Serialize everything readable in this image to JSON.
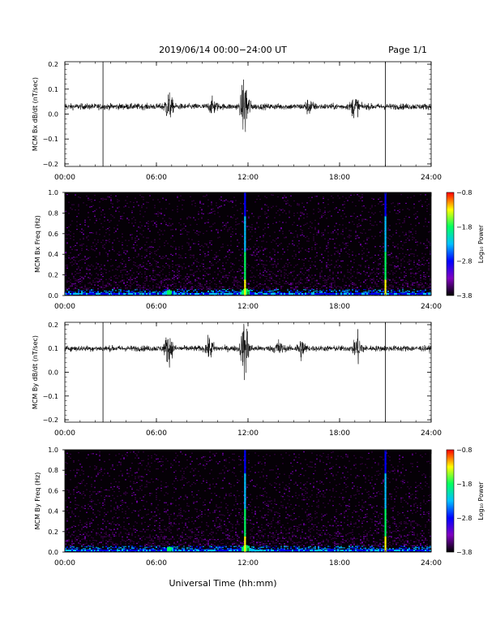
{
  "header": {
    "title": "2019/06/14  00:00−24:00 UT",
    "page": "Page 1/1"
  },
  "footer": {
    "xlabel": "Universal Time (hh:mm)"
  },
  "colors": {
    "background": "#ffffff",
    "trace": "#000000",
    "spectrogram_bg": "#050006"
  },
  "chart_data": [
    {
      "type": "line",
      "ylabel": "MCM Bx dB/dt (nT/sec)",
      "x_ticks": [
        "00:00",
        "06:00",
        "12:00",
        "18:00",
        "24:00"
      ],
      "x_range_hours": [
        0,
        24
      ],
      "y_ticks": [
        "0.2",
        "0.1",
        "0.0",
        "−0.1",
        "−0.2"
      ],
      "y_tick_values": [
        0.2,
        0.1,
        0.0,
        -0.1,
        -0.2
      ],
      "ylim": [
        -0.21,
        0.21
      ],
      "baseline": 0.03,
      "vertical_lines_hours": [
        2.5,
        21.0
      ],
      "bursts": [
        {
          "hour": 6.8,
          "amp": 0.05
        },
        {
          "hour": 11.8,
          "amp": 0.12
        },
        {
          "hour": 19.0,
          "amp": 0.04
        },
        {
          "hour": 9.7,
          "amp": 0.025
        },
        {
          "hour": 16.0,
          "amp": 0.025
        }
      ]
    },
    {
      "type": "heatmap",
      "ylabel": "MCM Bx Freq (Hz)",
      "x_ticks": [
        "00:00",
        "06:00",
        "12:00",
        "18:00",
        "24:00"
      ],
      "y_ticks": [
        "1.0",
        "0.8",
        "0.6",
        "0.4",
        "0.2",
        "0.0"
      ],
      "ylim": [
        0,
        1.0
      ],
      "colorbar": {
        "label": "Log₁₀ Power",
        "ticks": [
          "−0.8",
          "−1.8",
          "−2.8",
          "−3.8"
        ],
        "range": [
          -3.8,
          -0.8
        ],
        "colors": [
          "#000000",
          "#8000c0",
          "#0000ff",
          "#00c0ff",
          "#00ff60",
          "#ffff00",
          "#ff0000"
        ]
      },
      "vertical_lines_hours": [
        11.8,
        21.0
      ],
      "bursts": [
        {
          "hour": 6.8,
          "amp": 0.6
        },
        {
          "hour": 11.8,
          "amp": 1.0
        }
      ]
    },
    {
      "type": "line",
      "ylabel": "MCM By dB/dt (nT/sec)",
      "x_ticks": [
        "00:00",
        "06:00",
        "12:00",
        "18:00",
        "24:00"
      ],
      "x_range_hours": [
        0,
        24
      ],
      "y_ticks": [
        "0.2",
        "0.1",
        "0.0",
        "−0.1",
        "−0.2"
      ],
      "y_tick_values": [
        0.2,
        0.1,
        0.0,
        -0.1,
        -0.2
      ],
      "ylim": [
        -0.21,
        0.21
      ],
      "baseline": 0.1,
      "vertical_lines_hours": [
        2.5,
        21.0
      ],
      "bursts": [
        {
          "hour": 6.8,
          "amp": 0.06
        },
        {
          "hour": 11.8,
          "amp": 0.12
        },
        {
          "hour": 9.5,
          "amp": 0.04
        },
        {
          "hour": 15.5,
          "amp": 0.04
        },
        {
          "hour": 19.2,
          "amp": 0.06
        },
        {
          "hour": 14.0,
          "amp": 0.03
        }
      ]
    },
    {
      "type": "heatmap",
      "ylabel": "MCM By Freq (Hz)",
      "x_ticks": [
        "00:00",
        "06:00",
        "12:00",
        "18:00",
        "24:00"
      ],
      "y_ticks": [
        "1.0",
        "0.8",
        "0.6",
        "0.4",
        "0.2",
        "0.0"
      ],
      "ylim": [
        0,
        1.0
      ],
      "colorbar": {
        "label": "Log₁₀ Power",
        "ticks": [
          "−0.8",
          "−1.8",
          "−2.8",
          "−3.8"
        ],
        "range": [
          -3.8,
          -0.8
        ],
        "colors": [
          "#000000",
          "#8000c0",
          "#0000ff",
          "#00c0ff",
          "#00ff60",
          "#ffff00",
          "#ff0000"
        ]
      },
      "vertical_lines_hours": [
        11.8,
        21.0
      ],
      "bursts": [
        {
          "hour": 6.8,
          "amp": 0.6
        },
        {
          "hour": 11.8,
          "amp": 1.0
        }
      ]
    }
  ]
}
